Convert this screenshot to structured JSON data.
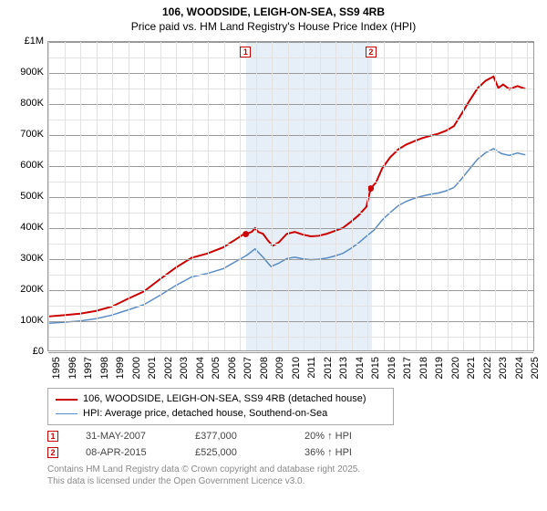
{
  "title_line1": "106, WOODSIDE, LEIGH-ON-SEA, SS9 4RB",
  "title_line2": "Price paid vs. HM Land Registry's House Price Index (HPI)",
  "chart": {
    "type": "line",
    "x_min": 1995,
    "x_max": 2025.5,
    "y_min": 0,
    "y_max": 1000000,
    "y_ticks": [
      {
        "v": 0,
        "label": "£0"
      },
      {
        "v": 100000,
        "label": "100K"
      },
      {
        "v": 200000,
        "label": "200K"
      },
      {
        "v": 300000,
        "label": "300K"
      },
      {
        "v": 400000,
        "label": "400K"
      },
      {
        "v": 500000,
        "label": "500K"
      },
      {
        "v": 600000,
        "label": "600K"
      },
      {
        "v": 700000,
        "label": "700K"
      },
      {
        "v": 800000,
        "label": "800K"
      },
      {
        "v": 900000,
        "label": "900K"
      },
      {
        "v": 1000000,
        "label": "£1M"
      }
    ],
    "x_ticks": [
      1995,
      1996,
      1997,
      1998,
      1999,
      2000,
      2001,
      2002,
      2003,
      2004,
      2005,
      2006,
      2007,
      2008,
      2009,
      2010,
      2011,
      2012,
      2013,
      2014,
      2015,
      2016,
      2017,
      2018,
      2019,
      2020,
      2021,
      2022,
      2023,
      2024,
      2025
    ],
    "grid_color_major": "#9a9a9a",
    "grid_color_minor": "#e2e2e2",
    "background_color": "#ffffff",
    "shade_color": "#e6eef8",
    "series": [
      {
        "name": "price_paid",
        "label": "106, WOODSIDE, LEIGH-ON-SEA, SS9 4RB (detached house)",
        "color": "#cc0000",
        "width": 2,
        "points": [
          [
            1995,
            110000
          ],
          [
            1996,
            114500
          ],
          [
            1997,
            119000
          ],
          [
            1998,
            128000
          ],
          [
            1999,
            142000
          ],
          [
            2000,
            167000
          ],
          [
            2001,
            191000
          ],
          [
            2002,
            230000
          ],
          [
            2003,
            268000
          ],
          [
            2004,
            300000
          ],
          [
            2005,
            314000
          ],
          [
            2006,
            334000
          ],
          [
            2007.0,
            367000
          ],
          [
            2007.2,
            374000
          ],
          [
            2007.416,
            377000
          ],
          [
            2007.8,
            384500
          ],
          [
            2008.0,
            396500
          ],
          [
            2008.2,
            384000
          ],
          [
            2008.5,
            378000
          ],
          [
            2008.8,
            357000
          ],
          [
            2009.1,
            339000
          ],
          [
            2009.5,
            350500
          ],
          [
            2010,
            378000
          ],
          [
            2010.5,
            384000
          ],
          [
            2011,
            375500
          ],
          [
            2011.5,
            370000
          ],
          [
            2012,
            371500
          ],
          [
            2012.5,
            378000
          ],
          [
            2013,
            387000
          ],
          [
            2013.5,
            396500
          ],
          [
            2014,
            416000
          ],
          [
            2014.5,
            437500
          ],
          [
            2015,
            465500
          ],
          [
            2015.268,
            525000
          ],
          [
            2015.6,
            544000
          ],
          [
            2016,
            591000
          ],
          [
            2016.5,
            626000
          ],
          [
            2017,
            651500
          ],
          [
            2017.5,
            667000
          ],
          [
            2018,
            678000
          ],
          [
            2018.5,
            688000
          ],
          [
            2019,
            695500
          ],
          [
            2019.5,
            702000
          ],
          [
            2020,
            712000
          ],
          [
            2020.5,
            727000
          ],
          [
            2021,
            768000
          ],
          [
            2021.5,
            811000
          ],
          [
            2022,
            850000
          ],
          [
            2022.5,
            874500
          ],
          [
            2023,
            888000
          ],
          [
            2023.3,
            851000
          ],
          [
            2023.6,
            862000
          ],
          [
            2024,
            847000
          ],
          [
            2024.5,
            857000
          ],
          [
            2025,
            848000
          ]
        ]
      },
      {
        "name": "hpi",
        "label": "HPI: Average price, detached house, Southend-on-Sea",
        "color": "#5a8cc4",
        "width": 1.5,
        "points": [
          [
            1995,
            88000
          ],
          [
            1996,
            91500
          ],
          [
            1997,
            95500
          ],
          [
            1998,
            103000
          ],
          [
            1999,
            114500
          ],
          [
            2000,
            131000
          ],
          [
            2001,
            148000
          ],
          [
            2002,
            178000
          ],
          [
            2003,
            210000
          ],
          [
            2004,
            238000
          ],
          [
            2005,
            249500
          ],
          [
            2006,
            265000
          ],
          [
            2007,
            294500
          ],
          [
            2007.5,
            309000
          ],
          [
            2008,
            329000
          ],
          [
            2008.5,
            302000
          ],
          [
            2009,
            272000
          ],
          [
            2009.5,
            283000
          ],
          [
            2010,
            298000
          ],
          [
            2010.5,
            302000
          ],
          [
            2011,
            297000
          ],
          [
            2011.5,
            294000
          ],
          [
            2012,
            295500
          ],
          [
            2012.5,
            299000
          ],
          [
            2013,
            306000
          ],
          [
            2013.5,
            314000
          ],
          [
            2014,
            330000
          ],
          [
            2014.5,
            348000
          ],
          [
            2015,
            370000
          ],
          [
            2015.5,
            391000
          ],
          [
            2016,
            423000
          ],
          [
            2016.5,
            447000
          ],
          [
            2017,
            469000
          ],
          [
            2017.5,
            483000
          ],
          [
            2018,
            493000
          ],
          [
            2018.5,
            500000
          ],
          [
            2019,
            506000
          ],
          [
            2019.5,
            510000
          ],
          [
            2020,
            517000
          ],
          [
            2020.5,
            528000
          ],
          [
            2021,
            557000
          ],
          [
            2021.5,
            589000
          ],
          [
            2022,
            620000
          ],
          [
            2022.5,
            641000
          ],
          [
            2023,
            654000
          ],
          [
            2023.5,
            638000
          ],
          [
            2024,
            632000
          ],
          [
            2024.5,
            640000
          ],
          [
            2025,
            634000
          ]
        ]
      }
    ],
    "markers": [
      {
        "n": "1",
        "x": 2007.416,
        "y": 377000
      },
      {
        "n": "2",
        "x": 2015.268,
        "y": 525000
      }
    ],
    "shaded_span": [
      2007.416,
      2015.268
    ]
  },
  "legend": {
    "rows": [
      {
        "color": "#cc0000",
        "label": "106, WOODSIDE, LEIGH-ON-SEA, SS9 4RB (detached house)",
        "width": 2
      },
      {
        "color": "#5a8cc4",
        "label": "HPI: Average price, detached house, Southend-on-Sea",
        "width": 1.5
      }
    ]
  },
  "marker_table": [
    {
      "n": "1",
      "date": "31-MAY-2007",
      "price": "£377,000",
      "delta": "20% ↑ HPI"
    },
    {
      "n": "2",
      "date": "08-APR-2015",
      "price": "£525,000",
      "delta": "36% ↑ HPI"
    }
  ],
  "footer_line1": "Contains HM Land Registry data © Crown copyright and database right 2025.",
  "footer_line2": "This data is licensed under the Open Government Licence v3.0."
}
